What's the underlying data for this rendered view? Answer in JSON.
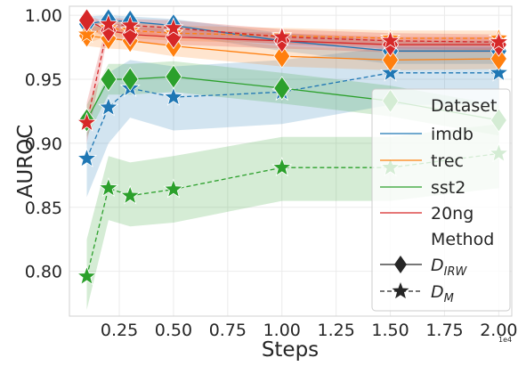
{
  "chart_data": {
    "type": "line",
    "title": "",
    "xlabel": "Steps",
    "ylabel": "AUROC",
    "x_offset_label": "1e4",
    "xlim": [
      0.02,
      2.06
    ],
    "ylim": [
      0.765,
      1.007
    ],
    "xticks": [
      0.25,
      0.5,
      0.75,
      1.0,
      1.25,
      1.5,
      1.75,
      2.0
    ],
    "xtick_labels": [
      "0.25",
      "0.50",
      "0.75",
      "1.00",
      "1.25",
      "1.50",
      "1.75",
      "2.00"
    ],
    "yticks": [
      0.8,
      0.85,
      0.9,
      0.95,
      1.0
    ],
    "ytick_labels": [
      "0.80",
      "0.85",
      "0.90",
      "0.95",
      "1.00"
    ],
    "grid": true,
    "legend_position": "right",
    "x": [
      0.1,
      0.2,
      0.3,
      0.5,
      1.0,
      1.5,
      2.0
    ],
    "series": [
      {
        "name": "imdb",
        "method": "D_IRW",
        "color": "#1f77b4",
        "values": [
          0.993,
          0.996,
          0.995,
          0.992,
          0.98,
          0.972,
          0.972
        ],
        "band": [
          [
            0.985,
            0.999
          ],
          [
            0.991,
            1.0
          ],
          [
            0.99,
            0.999
          ],
          [
            0.985,
            0.997
          ],
          [
            0.972,
            0.986
          ],
          [
            0.962,
            0.98
          ],
          [
            0.962,
            0.98
          ]
        ]
      },
      {
        "name": "imdb",
        "method": "D_M",
        "color": "#1f77b4",
        "values": [
          0.888,
          0.928,
          0.943,
          0.936,
          0.94,
          0.955,
          0.955
        ],
        "band": [
          [
            0.858,
            0.916
          ],
          [
            0.9,
            0.955
          ],
          [
            0.92,
            0.965
          ],
          [
            0.91,
            0.96
          ],
          [
            0.915,
            0.965
          ],
          [
            0.93,
            0.975
          ],
          [
            0.93,
            0.975
          ]
        ]
      },
      {
        "name": "trec",
        "method": "D_IRW",
        "color": "#ff7f0e",
        "values": [
          0.984,
          0.982,
          0.98,
          0.976,
          0.968,
          0.965,
          0.966
        ],
        "band": [
          [
            0.976,
            0.992
          ],
          [
            0.974,
            0.99
          ],
          [
            0.973,
            0.988
          ],
          [
            0.968,
            0.984
          ],
          [
            0.96,
            0.976
          ],
          [
            0.957,
            0.973
          ],
          [
            0.958,
            0.974
          ]
        ]
      },
      {
        "name": "trec",
        "method": "D_M",
        "color": "#ff7f0e",
        "values": [
          0.985,
          0.99,
          0.988,
          0.986,
          0.984,
          0.982,
          0.982
        ],
        "band": [
          [
            0.978,
            0.992
          ],
          [
            0.984,
            0.996
          ],
          [
            0.982,
            0.994
          ],
          [
            0.98,
            0.992
          ],
          [
            0.978,
            0.99
          ],
          [
            0.976,
            0.988
          ],
          [
            0.976,
            0.988
          ]
        ]
      },
      {
        "name": "sst2",
        "method": "D_IRW",
        "color": "#2ca02c",
        "values": [
          0.918,
          0.95,
          0.95,
          0.952,
          0.943,
          0.933,
          0.918
        ],
        "band": [
          [
            0.905,
            0.93
          ],
          [
            0.938,
            0.962
          ],
          [
            0.938,
            0.962
          ],
          [
            0.94,
            0.964
          ],
          [
            0.931,
            0.955
          ],
          [
            0.921,
            0.945
          ],
          [
            0.906,
            0.93
          ]
        ]
      },
      {
        "name": "sst2",
        "method": "D_M",
        "color": "#2ca02c",
        "values": [
          0.796,
          0.865,
          0.859,
          0.864,
          0.881,
          0.881,
          0.892
        ],
        "band": [
          [
            0.77,
            0.825
          ],
          [
            0.84,
            0.89
          ],
          [
            0.835,
            0.885
          ],
          [
            0.838,
            0.89
          ],
          [
            0.855,
            0.905
          ],
          [
            0.855,
            0.905
          ],
          [
            0.865,
            0.915
          ]
        ]
      },
      {
        "name": "20ng",
        "method": "D_IRW",
        "color": "#d62728",
        "values": [
          0.996,
          0.988,
          0.985,
          0.983,
          0.98,
          0.977,
          0.977
        ],
        "band": [
          [
            0.99,
            1.0
          ],
          [
            0.982,
            0.994
          ],
          [
            0.979,
            0.991
          ],
          [
            0.977,
            0.989
          ],
          [
            0.974,
            0.986
          ],
          [
            0.971,
            0.983
          ],
          [
            0.971,
            0.983
          ]
        ]
      },
      {
        "name": "20ng",
        "method": "D_M",
        "color": "#d62728",
        "values": [
          0.916,
          0.993,
          0.992,
          0.99,
          0.983,
          0.98,
          0.979
        ],
        "band": [
          [
            0.9,
            0.932
          ],
          [
            0.987,
            0.998
          ],
          [
            0.986,
            0.997
          ],
          [
            0.984,
            0.996
          ],
          [
            0.977,
            0.989
          ],
          [
            0.974,
            0.986
          ],
          [
            0.973,
            0.985
          ]
        ]
      }
    ],
    "legend": {
      "dataset_header": "Dataset",
      "method_header": "Method",
      "datasets": [
        {
          "label": "imdb",
          "color": "#1f77b4"
        },
        {
          "label": "trec",
          "color": "#ff7f0e"
        },
        {
          "label": "sst2",
          "color": "#2ca02c"
        },
        {
          "label": "20ng",
          "color": "#d62728"
        }
      ],
      "methods": [
        {
          "base": "D",
          "sub": "IRW",
          "marker": "diamond",
          "line": "solid"
        },
        {
          "base": "D",
          "sub": "M",
          "marker": "star",
          "line": "dashed"
        }
      ]
    }
  }
}
